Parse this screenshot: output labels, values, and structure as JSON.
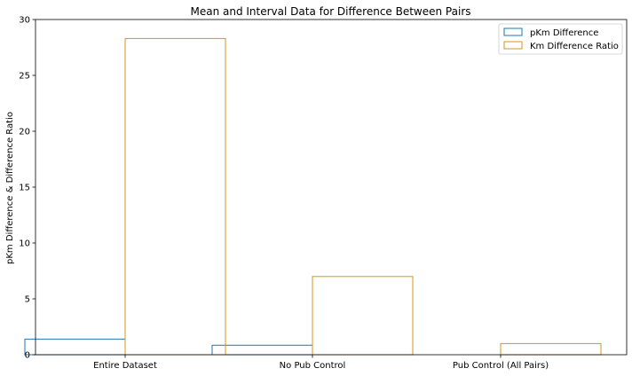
{
  "chart_data": {
    "type": "bar",
    "title": "Mean and Interval Data for Difference Between Pairs",
    "xlabel": "",
    "ylabel": "pKm Difference & Difference Ratio",
    "categories": [
      "Entire Dataset",
      "No Pub Control",
      "Pub Control (All Pairs)"
    ],
    "series": [
      {
        "name": "pKm Difference",
        "values": [
          1.4,
          0.85,
          0.0
        ],
        "color": "#1f77b4"
      },
      {
        "name": "Km Difference Ratio",
        "values": [
          28.3,
          7.0,
          1.0
        ],
        "color": "#d8961a"
      }
    ],
    "ylim": [
      0,
      30
    ],
    "yticks": [
      "0",
      "5",
      "10",
      "15",
      "20",
      "25",
      "30"
    ],
    "grid": false,
    "legend_position": "top-right",
    "bar_fill": "none"
  }
}
